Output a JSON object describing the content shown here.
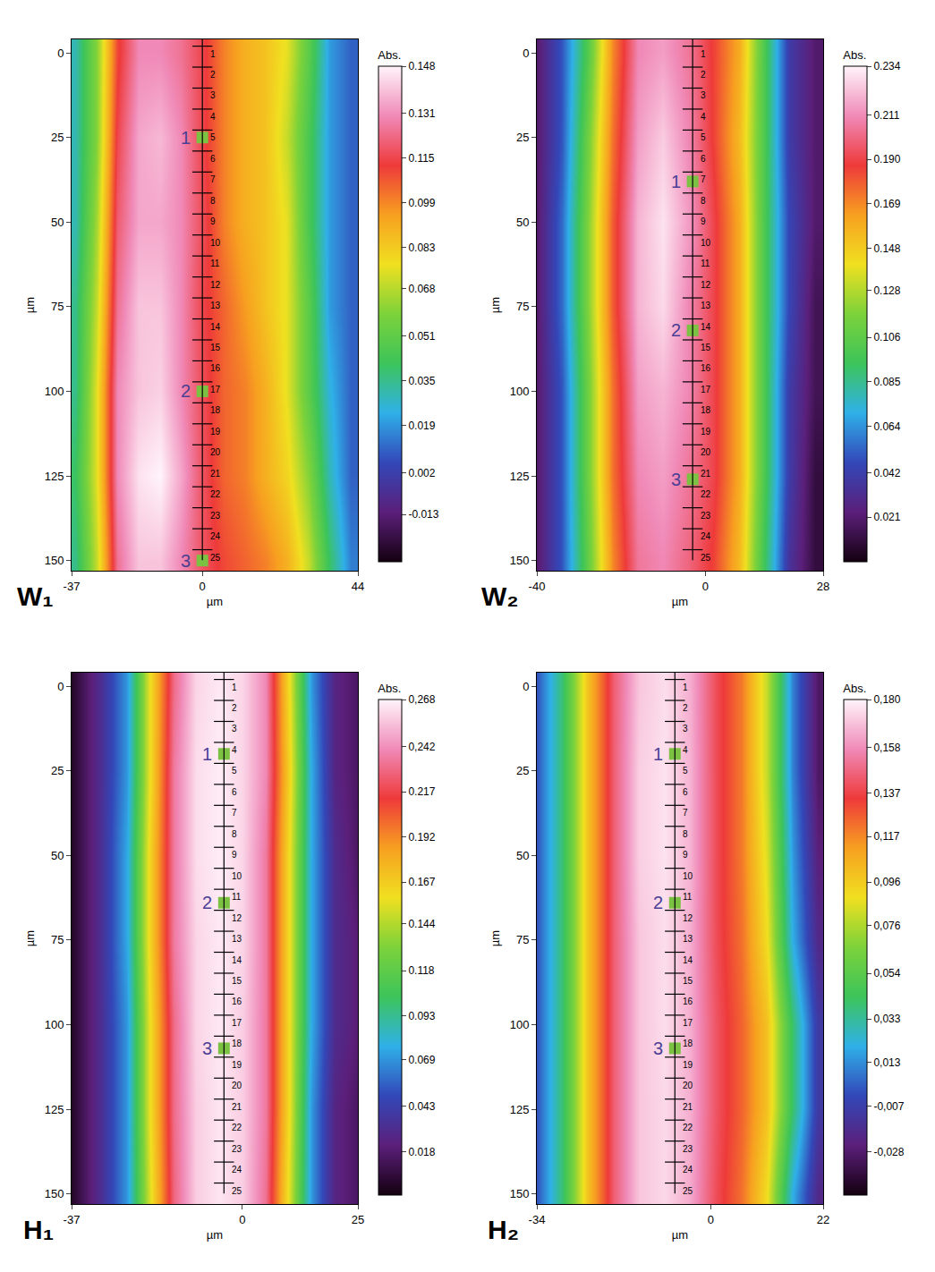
{
  "chart_data": [
    {
      "type": "heatmap",
      "panel_label": "W₁",
      "xlabel": "µm",
      "ylabel": "µm",
      "xlim": [
        -37,
        44
      ],
      "xticks": [
        -37,
        0,
        44
      ],
      "ylim": [
        -4,
        153
      ],
      "yticks": [
        0,
        25,
        50,
        75,
        100,
        125,
        150
      ],
      "heatmap": {
        "x": [
          -36,
          -30,
          -24,
          -18,
          -12,
          -6,
          0,
          6,
          12,
          18,
          24,
          30,
          36,
          42
        ],
        "y": [
          0,
          25,
          50,
          75,
          100,
          125,
          150
        ],
        "z": [
          [
            0.03,
            0.06,
            0.11,
            0.13,
            0.13,
            0.125,
            0.115,
            0.1,
            0.09,
            0.085,
            0.075,
            0.05,
            0.02,
            0.01
          ],
          [
            0.03,
            0.06,
            0.115,
            0.135,
            0.138,
            0.13,
            0.115,
            0.1,
            0.09,
            0.085,
            0.07,
            0.045,
            0.02,
            0.01
          ],
          [
            0.03,
            0.065,
            0.12,
            0.135,
            0.135,
            0.13,
            0.117,
            0.1,
            0.09,
            0.085,
            0.075,
            0.045,
            0.02,
            0.01
          ],
          [
            0.035,
            0.07,
            0.125,
            0.14,
            0.14,
            0.13,
            0.115,
            0.105,
            0.095,
            0.085,
            0.075,
            0.05,
            0.02,
            0.01
          ],
          [
            0.035,
            0.075,
            0.13,
            0.14,
            0.142,
            0.13,
            0.117,
            0.105,
            0.1,
            0.09,
            0.075,
            0.05,
            0.025,
            0.01
          ],
          [
            0.04,
            0.075,
            0.13,
            0.145,
            0.148,
            0.135,
            0.118,
            0.105,
            0.1,
            0.09,
            0.08,
            0.06,
            0.03,
            0.01
          ],
          [
            0.035,
            0.07,
            0.125,
            0.14,
            0.14,
            0.13,
            0.118,
            0.11,
            0.105,
            0.1,
            0.09,
            0.07,
            0.04,
            0.015
          ]
        ]
      },
      "colorbar": {
        "title": "Abs.",
        "zlim": [
          -0.03,
          0.148
        ],
        "ticks": [
          0.148,
          0.131,
          0.115,
          0.099,
          0.083,
          0.068,
          0.051,
          0.035,
          0.019,
          0.002,
          -0.013
        ]
      },
      "ruler": {
        "x": 0,
        "labels": [
          "1",
          "2",
          "3",
          "4",
          "5",
          "6",
          "7",
          "8",
          "9",
          "10",
          "11",
          "12",
          "13",
          "14",
          "15",
          "16",
          "17",
          "18",
          "19",
          "20",
          "21",
          "22",
          "23",
          "24",
          "25"
        ],
        "y": [
          -2,
          4.2,
          10.4,
          16.6,
          22.8,
          29,
          35.2,
          41.4,
          47.6,
          53.8,
          60,
          66.2,
          72.4,
          78.6,
          84.8,
          91,
          97.2,
          103.4,
          109.6,
          115.8,
          122,
          128.2,
          134.4,
          140.6,
          146.8
        ]
      },
      "points": [
        {
          "label": "1",
          "x": 0,
          "y": 25
        },
        {
          "label": "2",
          "x": 0,
          "y": 100
        },
        {
          "label": "3",
          "x": 0,
          "y": 150
        }
      ]
    },
    {
      "type": "heatmap",
      "panel_label": "W₂",
      "xlabel": "µm",
      "ylabel": "µm",
      "xlim": [
        -40,
        28
      ],
      "xticks": [
        -40,
        0,
        28
      ],
      "ylim": [
        -4,
        153
      ],
      "yticks": [
        0,
        25,
        50,
        75,
        100,
        125,
        150
      ],
      "heatmap": {
        "x": [
          -40,
          -34,
          -28,
          -22,
          -16,
          -10,
          -4,
          2,
          8,
          14,
          20,
          26
        ],
        "y": [
          0,
          25,
          50,
          75,
          100,
          125,
          150
        ],
        "z": [
          [
            0.02,
            0.05,
            0.1,
            0.17,
            0.21,
            0.215,
            0.205,
            0.185,
            0.16,
            0.1,
            0.04,
            0.02
          ],
          [
            0.02,
            0.05,
            0.11,
            0.175,
            0.215,
            0.225,
            0.21,
            0.185,
            0.155,
            0.1,
            0.04,
            0.02
          ],
          [
            0.02,
            0.055,
            0.115,
            0.18,
            0.22,
            0.23,
            0.215,
            0.19,
            0.16,
            0.1,
            0.045,
            0.02
          ],
          [
            0.02,
            0.055,
            0.115,
            0.18,
            0.22,
            0.228,
            0.21,
            0.19,
            0.16,
            0.1,
            0.045,
            0.015
          ],
          [
            0.02,
            0.05,
            0.11,
            0.175,
            0.215,
            0.22,
            0.21,
            0.19,
            0.16,
            0.1,
            0.04,
            0.015
          ],
          [
            0.02,
            0.05,
            0.11,
            0.175,
            0.21,
            0.215,
            0.205,
            0.19,
            0.16,
            0.1,
            0.04,
            0.01
          ],
          [
            0.02,
            0.05,
            0.105,
            0.17,
            0.205,
            0.21,
            0.2,
            0.185,
            0.155,
            0.095,
            0.035,
            0.01
          ]
        ]
      },
      "colorbar": {
        "title": "Abs.",
        "zlim": [
          0,
          0.234
        ],
        "ticks": [
          0.234,
          0.211,
          {
            "value": 0.19,
            "label": "0.190"
          },
          0.169,
          0.148,
          0.128,
          0.106,
          0.085,
          0.064,
          0.042,
          0.021
        ]
      },
      "ruler": {
        "x": -3,
        "labels": [
          "1",
          "2",
          "3",
          "4",
          "5",
          "6",
          "7",
          "8",
          "9",
          "10",
          "11",
          "12",
          "13",
          "14",
          "15",
          "16",
          "17",
          "18",
          "19",
          "20",
          "21",
          "22",
          "23",
          "24",
          "25"
        ],
        "y": [
          -2,
          4.2,
          10.4,
          16.6,
          22.8,
          29,
          35.2,
          41.4,
          47.6,
          53.8,
          60,
          66.2,
          72.4,
          78.6,
          84.8,
          91,
          97.2,
          103.4,
          109.6,
          115.8,
          122,
          128.2,
          134.4,
          140.6,
          146.8
        ]
      },
      "points": [
        {
          "label": "1",
          "x": -3,
          "y": 38
        },
        {
          "label": "2",
          "x": -3,
          "y": 82
        },
        {
          "label": "3",
          "x": -3,
          "y": 126
        }
      ]
    },
    {
      "type": "heatmap",
      "panel_label": "H₁",
      "xlabel": "µm",
      "ylabel": "µm",
      "xlim": [
        -37,
        25
      ],
      "xticks": [
        -37,
        0,
        25
      ],
      "ylim": [
        -4,
        153
      ],
      "yticks": [
        0,
        25,
        50,
        75,
        100,
        125,
        150
      ],
      "heatmap": {
        "x": [
          -37,
          -31,
          -25,
          -20,
          -15,
          -10,
          -5,
          0,
          5,
          10,
          15,
          20,
          25
        ],
        "y": [
          0,
          25,
          50,
          75,
          100,
          125,
          150
        ],
        "z": [
          [
            0.0,
            0.03,
            0.07,
            0.16,
            0.23,
            0.26,
            0.265,
            0.26,
            0.24,
            0.16,
            0.07,
            0.025,
            0.015
          ],
          [
            0.0,
            0.03,
            0.07,
            0.16,
            0.235,
            0.262,
            0.266,
            0.26,
            0.24,
            0.165,
            0.075,
            0.025,
            0.015
          ],
          [
            0.0,
            0.03,
            0.075,
            0.165,
            0.235,
            0.262,
            0.266,
            0.26,
            0.235,
            0.16,
            0.075,
            0.03,
            0.015
          ],
          [
            0.0,
            0.03,
            0.075,
            0.165,
            0.235,
            0.26,
            0.265,
            0.26,
            0.235,
            0.16,
            0.075,
            0.03,
            0.02
          ],
          [
            0.0,
            0.03,
            0.07,
            0.16,
            0.23,
            0.26,
            0.265,
            0.258,
            0.235,
            0.16,
            0.075,
            0.03,
            0.02
          ],
          [
            0.0,
            0.03,
            0.07,
            0.16,
            0.23,
            0.258,
            0.264,
            0.258,
            0.235,
            0.16,
            0.07,
            0.025,
            0.015
          ],
          [
            0.0,
            0.03,
            0.07,
            0.155,
            0.228,
            0.258,
            0.264,
            0.258,
            0.232,
            0.155,
            0.07,
            0.025,
            0.015
          ]
        ]
      },
      "colorbar": {
        "title": "Abs.",
        "zlim": [
          -0.006,
          0.268
        ],
        "ticks": [
          {
            "value": 0.268,
            "label": "0,268"
          },
          {
            "value": 0.242,
            "label": "0,242"
          },
          0.217,
          0.192,
          0.167,
          0.144,
          0.118,
          0.093,
          0.069,
          0.043,
          0.018
        ]
      },
      "ruler": {
        "x": -4,
        "labels": [
          "1",
          "2",
          "3",
          "4",
          "5",
          "6",
          "7",
          "8",
          "9",
          "10",
          "11",
          "12",
          "13",
          "14",
          "15",
          "16",
          "17",
          "18",
          "19",
          "20",
          "21",
          "22",
          "23",
          "24",
          "25"
        ],
        "y": [
          -2,
          4.2,
          10.4,
          16.6,
          22.8,
          29,
          35.2,
          41.4,
          47.6,
          53.8,
          60,
          66.2,
          72.4,
          78.6,
          84.8,
          91,
          97.2,
          103.4,
          109.6,
          115.8,
          122,
          128.2,
          134.4,
          140.6,
          146.8
        ]
      },
      "points": [
        {
          "label": "1",
          "x": -4,
          "y": 20
        },
        {
          "label": "2",
          "x": -4,
          "y": 64
        },
        {
          "label": "3",
          "x": -4,
          "y": 107
        }
      ]
    },
    {
      "type": "heatmap",
      "panel_label": "H₂",
      "xlabel": "µm",
      "ylabel": "µm",
      "xlim": [
        -34,
        22
      ],
      "xticks": [
        -34,
        0,
        22
      ],
      "ylim": [
        -4,
        153
      ],
      "yticks": [
        0,
        25,
        50,
        75,
        100,
        125,
        150
      ],
      "heatmap": {
        "x": [
          -34,
          -29,
          -24,
          -19,
          -14,
          -9,
          -4,
          1,
          6,
          11,
          16,
          21
        ],
        "y": [
          0,
          25,
          50,
          75,
          100,
          125,
          150
        ],
        "z": [
          [
            0.0,
            0.04,
            0.1,
            0.145,
            0.17,
            0.175,
            0.165,
            0.14,
            0.12,
            0.08,
            0.01,
            -0.03
          ],
          [
            0.0,
            0.04,
            0.1,
            0.145,
            0.172,
            0.176,
            0.166,
            0.14,
            0.12,
            0.08,
            0.01,
            -0.03
          ],
          [
            0.0,
            0.04,
            0.1,
            0.145,
            0.172,
            0.176,
            0.166,
            0.14,
            0.12,
            0.085,
            0.015,
            -0.025
          ],
          [
            0.0,
            0.04,
            0.1,
            0.145,
            0.17,
            0.175,
            0.165,
            0.14,
            0.122,
            0.09,
            0.02,
            -0.02
          ],
          [
            0.0,
            0.04,
            0.1,
            0.145,
            0.17,
            0.175,
            0.165,
            0.142,
            0.125,
            0.1,
            0.04,
            -0.01
          ],
          [
            0.0,
            0.04,
            0.1,
            0.145,
            0.17,
            0.174,
            0.165,
            0.142,
            0.125,
            0.1,
            0.04,
            -0.01
          ],
          [
            0.0,
            0.04,
            0.1,
            0.145,
            0.17,
            0.174,
            0.164,
            0.14,
            0.122,
            0.09,
            0.02,
            -0.02
          ]
        ]
      },
      "colorbar": {
        "title": "Abs.",
        "zlim": [
          -0.048,
          0.18
        ],
        "ticks": [
          {
            "value": 0.18,
            "label": "0,180"
          },
          {
            "value": 0.158,
            "label": "0,158"
          },
          {
            "value": 0.137,
            "label": "0,137"
          },
          {
            "value": 0.117,
            "label": "0,117"
          },
          {
            "value": 0.096,
            "label": "0,096"
          },
          {
            "value": 0.076,
            "label": "0,076"
          },
          {
            "value": 0.054,
            "label": "0,054"
          },
          {
            "value": 0.033,
            "label": "0,033"
          },
          {
            "value": 0.013,
            "label": "0,013"
          },
          {
            "value": -0.007,
            "label": "-0,007"
          },
          {
            "value": -0.028,
            "label": "-0,028"
          }
        ]
      },
      "ruler": {
        "x": -7,
        "labels": [
          "1",
          "2",
          "3",
          "4",
          "5",
          "6",
          "7",
          "8",
          "9",
          "10",
          "11",
          "12",
          "13",
          "14",
          "15",
          "16",
          "17",
          "18",
          "19",
          "20",
          "21",
          "22",
          "23",
          "24",
          "25"
        ],
        "y": [
          -2,
          4.2,
          10.4,
          16.6,
          22.8,
          29,
          35.2,
          41.4,
          47.6,
          53.8,
          60,
          66.2,
          72.4,
          78.6,
          84.8,
          91,
          97.2,
          103.4,
          109.6,
          115.8,
          122,
          128.2,
          134.4,
          140.6,
          146.8
        ]
      },
      "points": [
        {
          "label": "1",
          "x": -7,
          "y": 20
        },
        {
          "label": "2",
          "x": -7,
          "y": 64
        },
        {
          "label": "3",
          "x": -7,
          "y": 107
        }
      ]
    }
  ]
}
